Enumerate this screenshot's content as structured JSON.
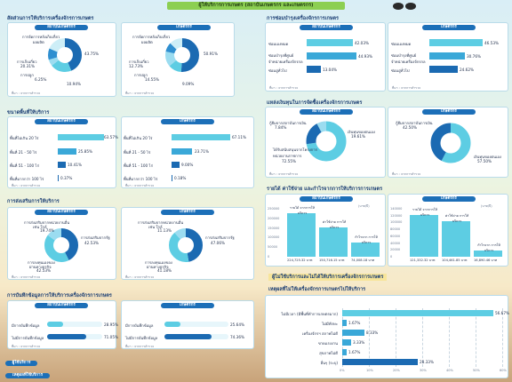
{
  "header": {
    "title": "ผู้ให้บริการการเกษตร (สถาบันเกษตรกร และเกษตรกร)"
  },
  "tags": {
    "inst": "สถาบันเกษตรกร",
    "farm": "เกษตรกร"
  },
  "source": "ที่มา : จากการสำรวจ",
  "s1": {
    "title": "สัดส่วนการให้บริการเครื่องจักรการเกษตร",
    "inst_labels": [
      "การจัดการหลังเก็บเกี่ยว",
      "ผลผลิต",
      "การเก็บเกี่ยว",
      "การปลูก",
      "การดูแลรักษา"
    ],
    "inst_values": [
      "43.75%",
      "20.31%",
      "6.25%",
      "10.94%",
      "18.75%"
    ],
    "farm_labels": [
      "การจัดการหลังเก็บเกี่ยว",
      "ผลผลิต",
      "การเก็บเกี่ยว",
      "การปลูก",
      "การดูแลรักษา"
    ],
    "farm_values": [
      "50.91%",
      "12.73%",
      "14.55%",
      "9.09%",
      "12.73%"
    ]
  },
  "s2": {
    "title": "ขนาดพื้นที่ให้บริการ",
    "rows": [
      "พื้นที่ไม่เกิน 20 ไร่",
      "พื้นที่ 21 - 50 ไร่",
      "พื้นที่ 51 - 100 ไร่",
      "พื้นที่มากกว่า 100 ไร่"
    ],
    "inst_values": [
      "63.57%",
      "25.85%",
      "10.41%",
      "0.37%"
    ],
    "farm_values": [
      "67.11%",
      "23.71%",
      "9.00%",
      "0.18%"
    ]
  },
  "s3": {
    "title": "การส่งเสริมการให้บริการ",
    "inst_labels": [
      "การส่งเสริมจากหน่วยงานอื่น",
      "เช่น ใกล้",
      "การส่งเสริมจากรัฐ",
      "การลงทุนเองของ",
      "ผ่านทางธุรกิจ"
    ],
    "inst_values": [
      "19.74%",
      "42.53%",
      "42.53%"
    ],
    "farm_labels": [
      "การส่งเสริมจากหน่วยงานอื่น",
      "เช่น ใกล้",
      "การส่งเสริมจากรัฐ",
      "การลงทุนเองของ",
      "ผ่านทางธุรกิจ"
    ],
    "farm_values": [
      "11.13%",
      "47.06%",
      "41.18%"
    ]
  },
  "s4": {
    "title": "การบันทึกข้อมูลการให้บริการเครื่องจักรการเกษตร",
    "rows": [
      "มีการบันทึกข้อมูล",
      "ไม่มีการบันทึกข้อมูล"
    ],
    "inst_values": [
      "28.95%",
      "71.05%"
    ],
    "farm_values": [
      "25.64%",
      "74.36%"
    ]
  },
  "s5": {
    "title": "การซ่อมบำรุงเครื่องจักรการเกษตร",
    "rows": [
      "ซ่อมเองหมด",
      "ซ่อมบำรุงที่ศูนย์ จำหน่ายเครื่องจักรกล",
      "ซ่อมอู่ทั่วไป"
    ],
    "inst_values": [
      "42.03%",
      "44.93%",
      "13.04%"
    ],
    "farm_values": [
      "46.53%",
      "30.76%",
      "24.62%"
    ]
  },
  "s6": {
    "title": "แหล่งเงินทุนในการจัดซื้อเครื่องจักรการเกษตร",
    "inst_labels": [
      "กู้ยืมจากสถาบันการเงิน",
      "เงินทุนของตนเอง",
      "ได้รับสนับสนุนจากโครงการ หน่วยงานราชการ"
    ],
    "inst_values": [
      "7.84%",
      "19.61%",
      "72.55%"
    ],
    "farm_labels": [
      "กู้ยืมจากสถาบันการเงิน",
      "เงินทุนของตนเอง"
    ],
    "farm_values": [
      "42.50%",
      "57.50%"
    ]
  },
  "s7": {
    "title": "รายได้ ค่าใช้จ่าย และกำไรจากการให้บริการการเกษตร",
    "unit": "(บาท/ปี)",
    "inst_cats": [
      "รายได้ จากการให้บริการ",
      "ค่าใช้จ่าย การให้บริการ",
      "กำไรจาก การให้บริการ"
    ],
    "inst_values": [
      224725.32,
      150716.15,
      74008.18
    ],
    "inst_labels": [
      "224,725.32 บาท",
      "150,716.15 บาท",
      "74,008.18 บาท"
    ],
    "inst_ticks": [
      "250000",
      "200000",
      "150000",
      "100000",
      "50000",
      "0"
    ],
    "farm_cats": [
      "รายได้ จากการให้บริการ",
      "ค่าใช้จ่าย การให้บริการ",
      "กำไรจาก การให้บริการ"
    ],
    "farm_values": [
      121332.32,
      104461.85,
      16890.46
    ],
    "farm_labels": [
      "121,332.32 บาท",
      "104,461.85 บาท",
      "16,890.46 บาท"
    ],
    "farm_ticks": [
      "140000",
      "120000",
      "100000",
      "80000",
      "60000",
      "40000",
      "20000",
      "0"
    ]
  },
  "s8": {
    "title": "ผู้ไม่ใช้บริการและไม่ได้ให้บริการเครื่องจักรการเกษตร",
    "subtitle": "เหตุผลที่ไม่ให้เครื่องจักรการเกษตรไปให้บริการ",
    "rows": [
      "ไม่มีเวลา (มีพื้นที่ทำการเกษตรมาก)",
      "ไม่มีทักษะ",
      "เครื่องจักรฯ สภาพไม่ดี",
      "ขาดแรงงาน",
      "สุขภาพไม่ดี",
      "อื่นๆ (ระบุ)"
    ],
    "values": [
      56.67,
      1.67,
      8.33,
      3.33,
      1.67,
      28.33
    ],
    "labels": [
      "56.67%",
      "1.67%",
      "8.33%",
      "3.33%",
      "1.67%",
      "28.33%"
    ],
    "ticks": [
      "0%",
      "10%",
      "20%",
      "30%",
      "40%",
      "50%",
      "60%"
    ]
  },
  "footer": {
    "users": "ผู้ใช้บริการ",
    "reasons": "เหตุผลที่ใช้บริการ"
  }
}
